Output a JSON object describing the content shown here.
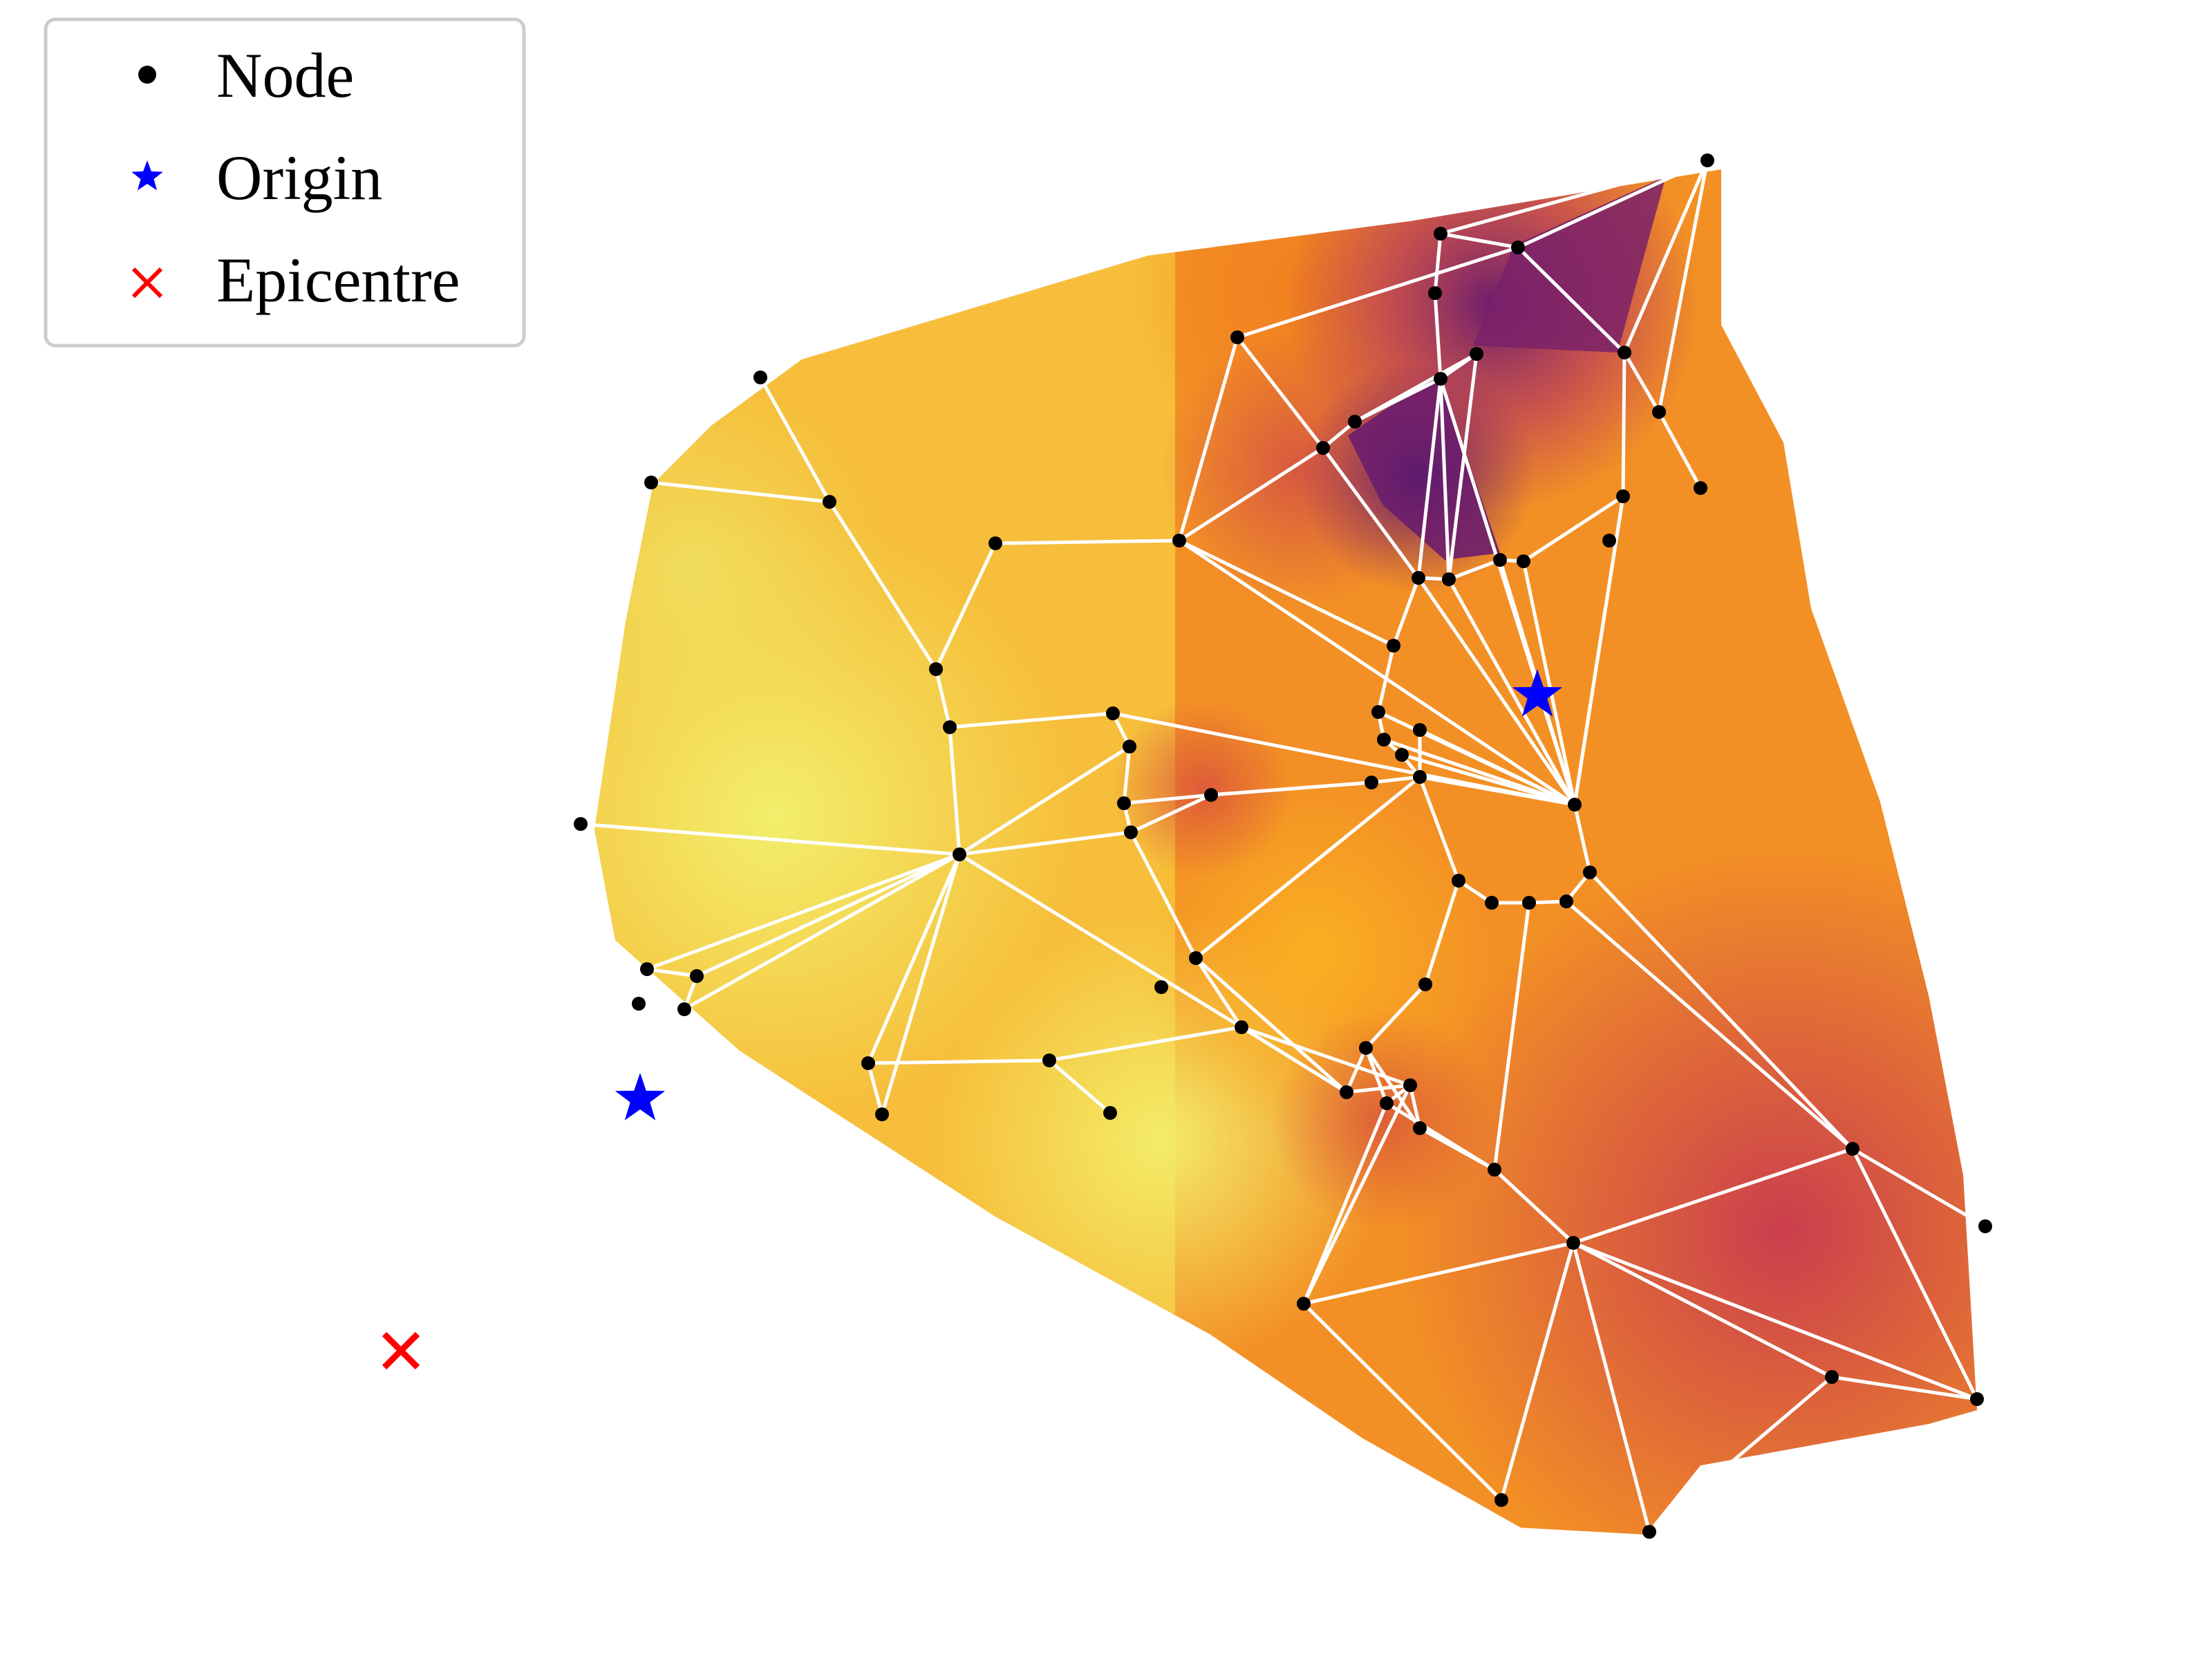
{
  "legend": {
    "node_label": "Node",
    "origin_label": "Origin",
    "epicentre_label": "Epicentre"
  },
  "colors": {
    "node": "#000000",
    "origin": "#0000ff",
    "epicentre": "#ff0000",
    "edge": "#ffffff",
    "colormap": "inferno",
    "legend_frame": "#cccccc"
  }
}
